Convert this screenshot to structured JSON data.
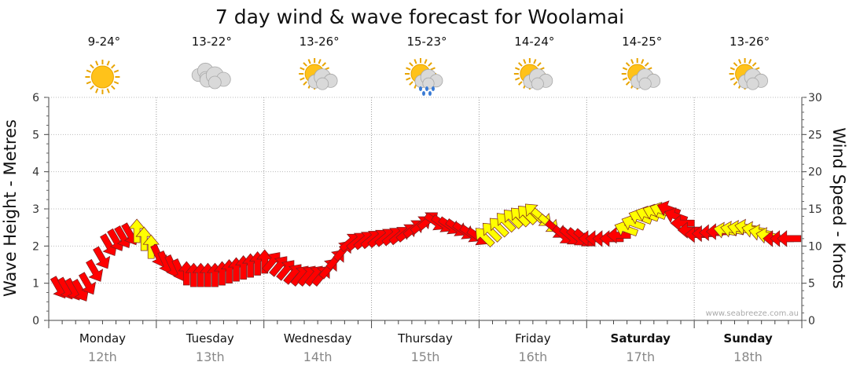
{
  "chart_data": {
    "type": "line",
    "title": "7 day wind & wave forecast for Woolamai",
    "ylabel": "Wave Height - Metres",
    "y2label": "Wind Speed - Knots",
    "ylim": [
      0,
      6
    ],
    "y2lim": [
      0,
      30
    ],
    "yticks": [
      "0",
      "1",
      "2",
      "3",
      "4",
      "5",
      "6"
    ],
    "y2ticks": [
      "0",
      "5",
      "10",
      "15",
      "20",
      "25",
      "30"
    ],
    "grid": true,
    "days": [
      {
        "name": "Monday",
        "date": "12th",
        "temp": "9-24°",
        "icon": "sunny-icon",
        "bold": false
      },
      {
        "name": "Tuesday",
        "date": "13th",
        "temp": "13-22°",
        "icon": "cloudy-icon",
        "bold": false
      },
      {
        "name": "Wednesday",
        "date": "14th",
        "temp": "13-26°",
        "icon": "partly-cloudy-icon",
        "bold": false
      },
      {
        "name": "Thursday",
        "date": "15th",
        "temp": "15-23°",
        "icon": "sun-cloud-rain-icon",
        "bold": false
      },
      {
        "name": "Friday",
        "date": "16th",
        "temp": "14-24°",
        "icon": "partly-cloudy-icon",
        "bold": false
      },
      {
        "name": "Saturday",
        "date": "17th",
        "temp": "14-25°",
        "icon": "partly-cloudy-icon",
        "bold": true
      },
      {
        "name": "Sunday",
        "date": "18th",
        "temp": "13-26°",
        "icon": "partly-cloudy-icon",
        "bold": true
      }
    ],
    "series": [
      {
        "name": "wind",
        "x_hours": [
          0,
          6,
          12,
          18,
          24,
          30,
          36,
          42,
          48,
          54,
          60,
          66,
          72,
          78,
          84,
          90,
          96,
          102,
          108,
          114,
          120,
          126,
          132,
          138,
          144,
          150,
          156,
          162,
          168
        ],
        "speed_knots": [
          4.5,
          4,
          10.5,
          12,
          8,
          6,
          6,
          7,
          8,
          6,
          6,
          10.5,
          11,
          11.5,
          13.5,
          12.5,
          11,
          13.5,
          14.5,
          11.5,
          11,
          11,
          14,
          15,
          11.5,
          12,
          12.5,
          11,
          11
        ]
      }
    ],
    "arrow_colors": {
      "light": "#ffff00",
      "strong": "#ff0000"
    },
    "watermark": "www.seabreeze.com.au"
  }
}
